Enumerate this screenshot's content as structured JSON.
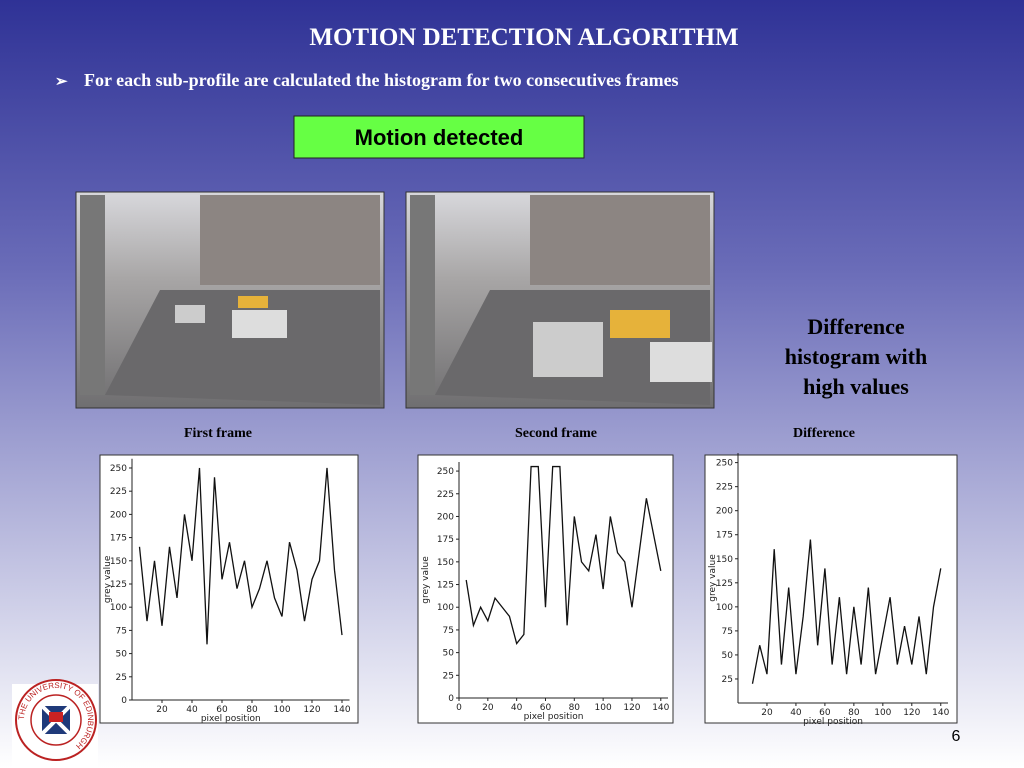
{
  "slide": {
    "title": "MOTION DETECTION ALGORITHM",
    "bullet": "For each sub-profile are calculated the histogram for two consecutives frames",
    "status_box": "Motion detected",
    "note_lines": [
      "Difference",
      "histogram with",
      "high values"
    ],
    "captions": [
      "First frame",
      "Second frame",
      "Difference"
    ],
    "page_number": "6",
    "logo_text": "THE UNIVERSITY OF EDINBURGH"
  },
  "chart_data": [
    {
      "type": "line",
      "title": "First frame",
      "x_label": "pixel position",
      "y_label": "grey value",
      "x": [
        5,
        10,
        15,
        20,
        25,
        30,
        35,
        40,
        45,
        50,
        55,
        60,
        65,
        70,
        75,
        80,
        85,
        90,
        95,
        100,
        105,
        110,
        115,
        120,
        125,
        130,
        135,
        140
      ],
      "series": [
        {
          "name": "First frame",
          "color": "#111111",
          "values": [
            165,
            85,
            150,
            80,
            165,
            110,
            200,
            150,
            250,
            60,
            240,
            130,
            170,
            120,
            150,
            100,
            120,
            150,
            110,
            90,
            170,
            140,
            85,
            130,
            150,
            250,
            140,
            70
          ]
        }
      ],
      "xlim": [
        0,
        145
      ],
      "ylim": [
        0,
        260
      ],
      "xticks": [
        20,
        40,
        60,
        80,
        100,
        120,
        140
      ],
      "yticks": [
        0,
        25,
        50,
        75,
        100,
        125,
        150,
        175,
        200,
        225,
        250
      ]
    },
    {
      "type": "line",
      "title": "Second frame",
      "x_label": "pixel position",
      "y_label": "grey value",
      "x": [
        5,
        10,
        15,
        20,
        25,
        30,
        35,
        40,
        45,
        50,
        55,
        60,
        65,
        70,
        75,
        80,
        85,
        90,
        95,
        100,
        105,
        110,
        115,
        120,
        125,
        130,
        135,
        140
      ],
      "series": [
        {
          "name": "Second frame",
          "color": "#111111",
          "values": [
            130,
            80,
            100,
            85,
            110,
            100,
            90,
            60,
            70,
            255,
            255,
            100,
            255,
            255,
            80,
            200,
            150,
            140,
            180,
            120,
            200,
            160,
            150,
            100,
            160,
            220,
            180,
            140
          ]
        }
      ],
      "xlim": [
        0,
        145
      ],
      "ylim": [
        0,
        260
      ],
      "xticks": [
        0,
        20,
        40,
        60,
        80,
        100,
        120,
        140
      ],
      "yticks": [
        0,
        25,
        50,
        75,
        100,
        125,
        150,
        175,
        200,
        225,
        250
      ]
    },
    {
      "type": "line",
      "title": "Difference",
      "x_label": "pixel position",
      "y_label": "grey value",
      "x": [
        10,
        15,
        20,
        25,
        30,
        35,
        40,
        45,
        50,
        55,
        60,
        65,
        70,
        75,
        80,
        85,
        90,
        95,
        100,
        105,
        110,
        115,
        120,
        125,
        130,
        135,
        140
      ],
      "series": [
        {
          "name": "Difference",
          "color": "#111111",
          "values": [
            20,
            60,
            30,
            160,
            40,
            120,
            30,
            90,
            170,
            60,
            140,
            40,
            110,
            30,
            100,
            40,
            120,
            30,
            70,
            110,
            40,
            80,
            40,
            90,
            30,
            100,
            140
          ]
        }
      ],
      "xlim": [
        0,
        145
      ],
      "ylim": [
        0,
        260
      ],
      "xticks": [
        20,
        40,
        60,
        80,
        100,
        120,
        140
      ],
      "yticks": [
        25,
        50,
        75,
        100,
        125,
        150,
        175,
        200,
        225,
        250
      ]
    }
  ]
}
